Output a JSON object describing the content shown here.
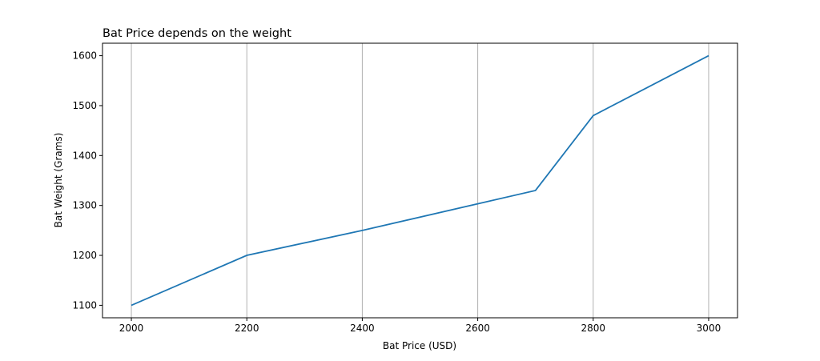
{
  "chart_data": {
    "type": "line",
    "title": "Bat Price depends on the weight",
    "xlabel": "Bat Price (USD)",
    "ylabel": "Bat Weight (Grams)",
    "x": [
      2000,
      2200,
      2400,
      2700,
      2800,
      3000
    ],
    "series": [
      {
        "values": [
          1100,
          1200,
          1250,
          1330,
          1480,
          1600
        ],
        "color": "#1f77b4"
      }
    ],
    "xlim": [
      1950,
      3050
    ],
    "ylim": [
      1075,
      1625
    ],
    "xticks": [
      2000,
      2200,
      2400,
      2600,
      2800,
      3000
    ],
    "yticks": [
      1100,
      1200,
      1300,
      1400,
      1500,
      1600
    ],
    "grid": "vertical (x-axis only)",
    "legend": "none"
  }
}
